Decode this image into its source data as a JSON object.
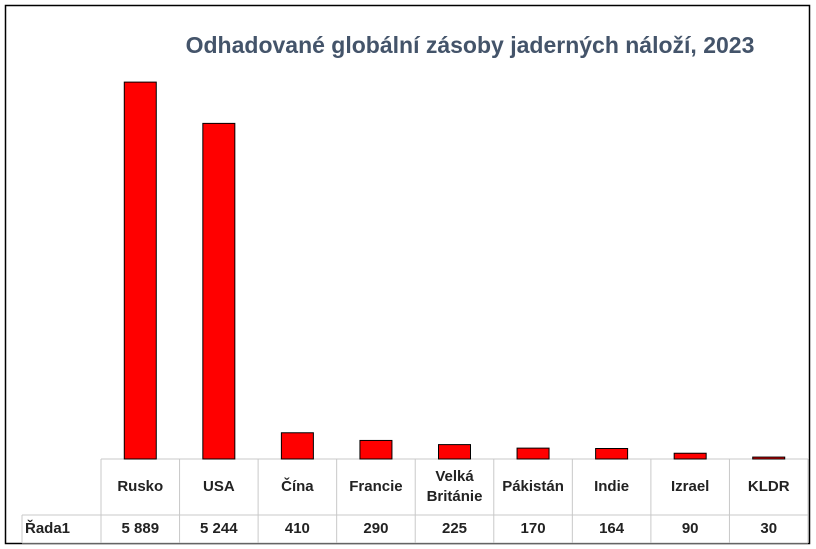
{
  "chart_data": {
    "type": "bar",
    "title": "Odhadované globální zásoby jaderných náloží, 2023",
    "categories": [
      "Rusko",
      "USA",
      "Čína",
      "Francie",
      "Velká Británie",
      "Pákistán",
      "Indie",
      "Izrael",
      "KLDR"
    ],
    "series": [
      {
        "name": "Řada1",
        "color": "#ff0000",
        "values": [
          5889,
          5244,
          410,
          290,
          225,
          170,
          164,
          90,
          30
        ],
        "value_labels": [
          "5 889",
          "5 244",
          "410",
          "290",
          "225",
          "170",
          "164",
          "90",
          "30"
        ]
      }
    ],
    "ylim": [
      0,
      6000
    ]
  }
}
